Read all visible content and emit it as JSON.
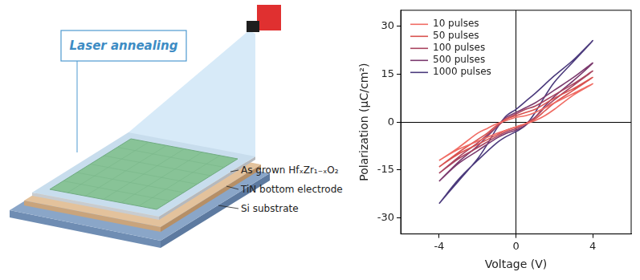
{
  "diagram": {
    "callout": "Laser annealing",
    "layers": [
      "As grown HfₓZr₁₋ₓO₂",
      "TiN bottom electrode",
      "Si substrate"
    ]
  },
  "chart_data": {
    "type": "line",
    "x_label": "Voltage (V)",
    "y_label": "Polarization (μC/cm²)",
    "x": [
      -4,
      -3,
      -2,
      -1,
      -0.5,
      0,
      0.5,
      1,
      1.5,
      2,
      3,
      4,
      3,
      2,
      1,
      0.5,
      0,
      -0.5,
      -1,
      -1.5,
      -2,
      -3,
      -4
    ],
    "series": [
      {
        "name": "10 pulses",
        "color": "#f06c64",
        "line_style": "solid",
        "values": [
          -12,
          -8.5,
          -6,
          -3.5,
          -2.5,
          -1.5,
          -0.5,
          0.5,
          2,
          4,
          8.5,
          12,
          9,
          6,
          3,
          2,
          1.5,
          0.5,
          -0.5,
          -2,
          -3.5,
          -8,
          -12
        ]
      },
      {
        "name": "50 pulses",
        "color": "#d9524f",
        "line_style": "solid",
        "values": [
          -14,
          -10,
          -7,
          -4,
          -2.5,
          -1.5,
          -0.5,
          1,
          3.5,
          6,
          10,
          14,
          10.5,
          7.5,
          4,
          3,
          2,
          1,
          -1,
          -3.5,
          -5.5,
          -9.5,
          -14
        ]
      },
      {
        "name": "100 pulses",
        "color": "#a94560",
        "line_style": "solid",
        "values": [
          -16,
          -11.5,
          -8,
          -4.5,
          -3,
          -2,
          -0.5,
          1.5,
          4.5,
          7,
          11.5,
          16,
          12,
          8.5,
          5,
          4,
          2.5,
          1,
          -1.5,
          -4,
          -6.5,
          -11,
          -16
        ]
      },
      {
        "name": "500 pulses",
        "color": "#7b3a6e",
        "line_style": "solid",
        "values": [
          -18.5,
          -13,
          -9,
          -5,
          -3.5,
          -2.5,
          -1,
          1.5,
          5,
          8,
          13,
          18.5,
          14,
          10,
          6,
          4.5,
          3,
          1.5,
          -1.5,
          -4.5,
          -7.5,
          -12.5,
          -18.5
        ]
      },
      {
        "name": "1000 pulses",
        "color": "#4b3a7c",
        "line_style": "solid",
        "values": [
          -25.5,
          -18,
          -12,
          -6.5,
          -4.5,
          -3,
          -1,
          3,
          8,
          12.5,
          19,
          25.5,
          19.5,
          14.5,
          9,
          6.5,
          4,
          2,
          -2,
          -7,
          -11.5,
          -18.5,
          -25.5
        ]
      }
    ],
    "xlim": [
      -6,
      6
    ],
    "xticks": [
      -4,
      0,
      4
    ],
    "ylim": [
      -35,
      35
    ],
    "yticks": [
      -30,
      -15,
      0,
      15,
      30
    ],
    "grid": false,
    "legend": "top-left"
  }
}
